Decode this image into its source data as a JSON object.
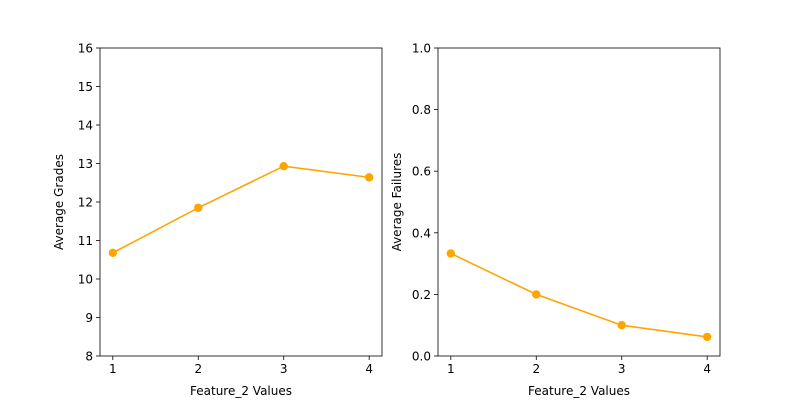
{
  "chart_data": [
    {
      "type": "line",
      "x": [
        1,
        2,
        3,
        4
      ],
      "xticks": [
        "1",
        "2",
        "3",
        "4"
      ],
      "xlim": [
        0.85,
        4.15
      ],
      "series": [
        {
          "values": [
            10.68,
            11.85,
            12.93,
            12.64
          ],
          "color": "#ffa500"
        }
      ],
      "xlabel": "Feature_2 Values",
      "ylabel": "Average Grades",
      "ylim": [
        8,
        16
      ],
      "yticks": [
        8,
        9,
        10,
        11,
        12,
        13,
        14,
        15,
        16
      ],
      "ytick_labels": [
        "8",
        "9",
        "10",
        "11",
        "12",
        "13",
        "14",
        "15",
        "16"
      ],
      "grid": false,
      "legend": "none"
    },
    {
      "type": "line",
      "x": [
        1,
        2,
        3,
        4
      ],
      "xticks": [
        "1",
        "2",
        "3",
        "4"
      ],
      "xlim": [
        0.85,
        4.15
      ],
      "series": [
        {
          "values": [
            0.333,
            0.2,
            0.1,
            0.062
          ],
          "color": "#ffa500"
        }
      ],
      "xlabel": "Feature_2 Values",
      "ylabel": "Average Failures",
      "ylim": [
        0,
        1
      ],
      "yticks": [
        0,
        0.2,
        0.4,
        0.6,
        0.8,
        1.0
      ],
      "ytick_labels": [
        "0.0",
        "0.2",
        "0.4",
        "0.6",
        "0.8",
        "1.0"
      ],
      "grid": false,
      "legend": "none"
    }
  ]
}
